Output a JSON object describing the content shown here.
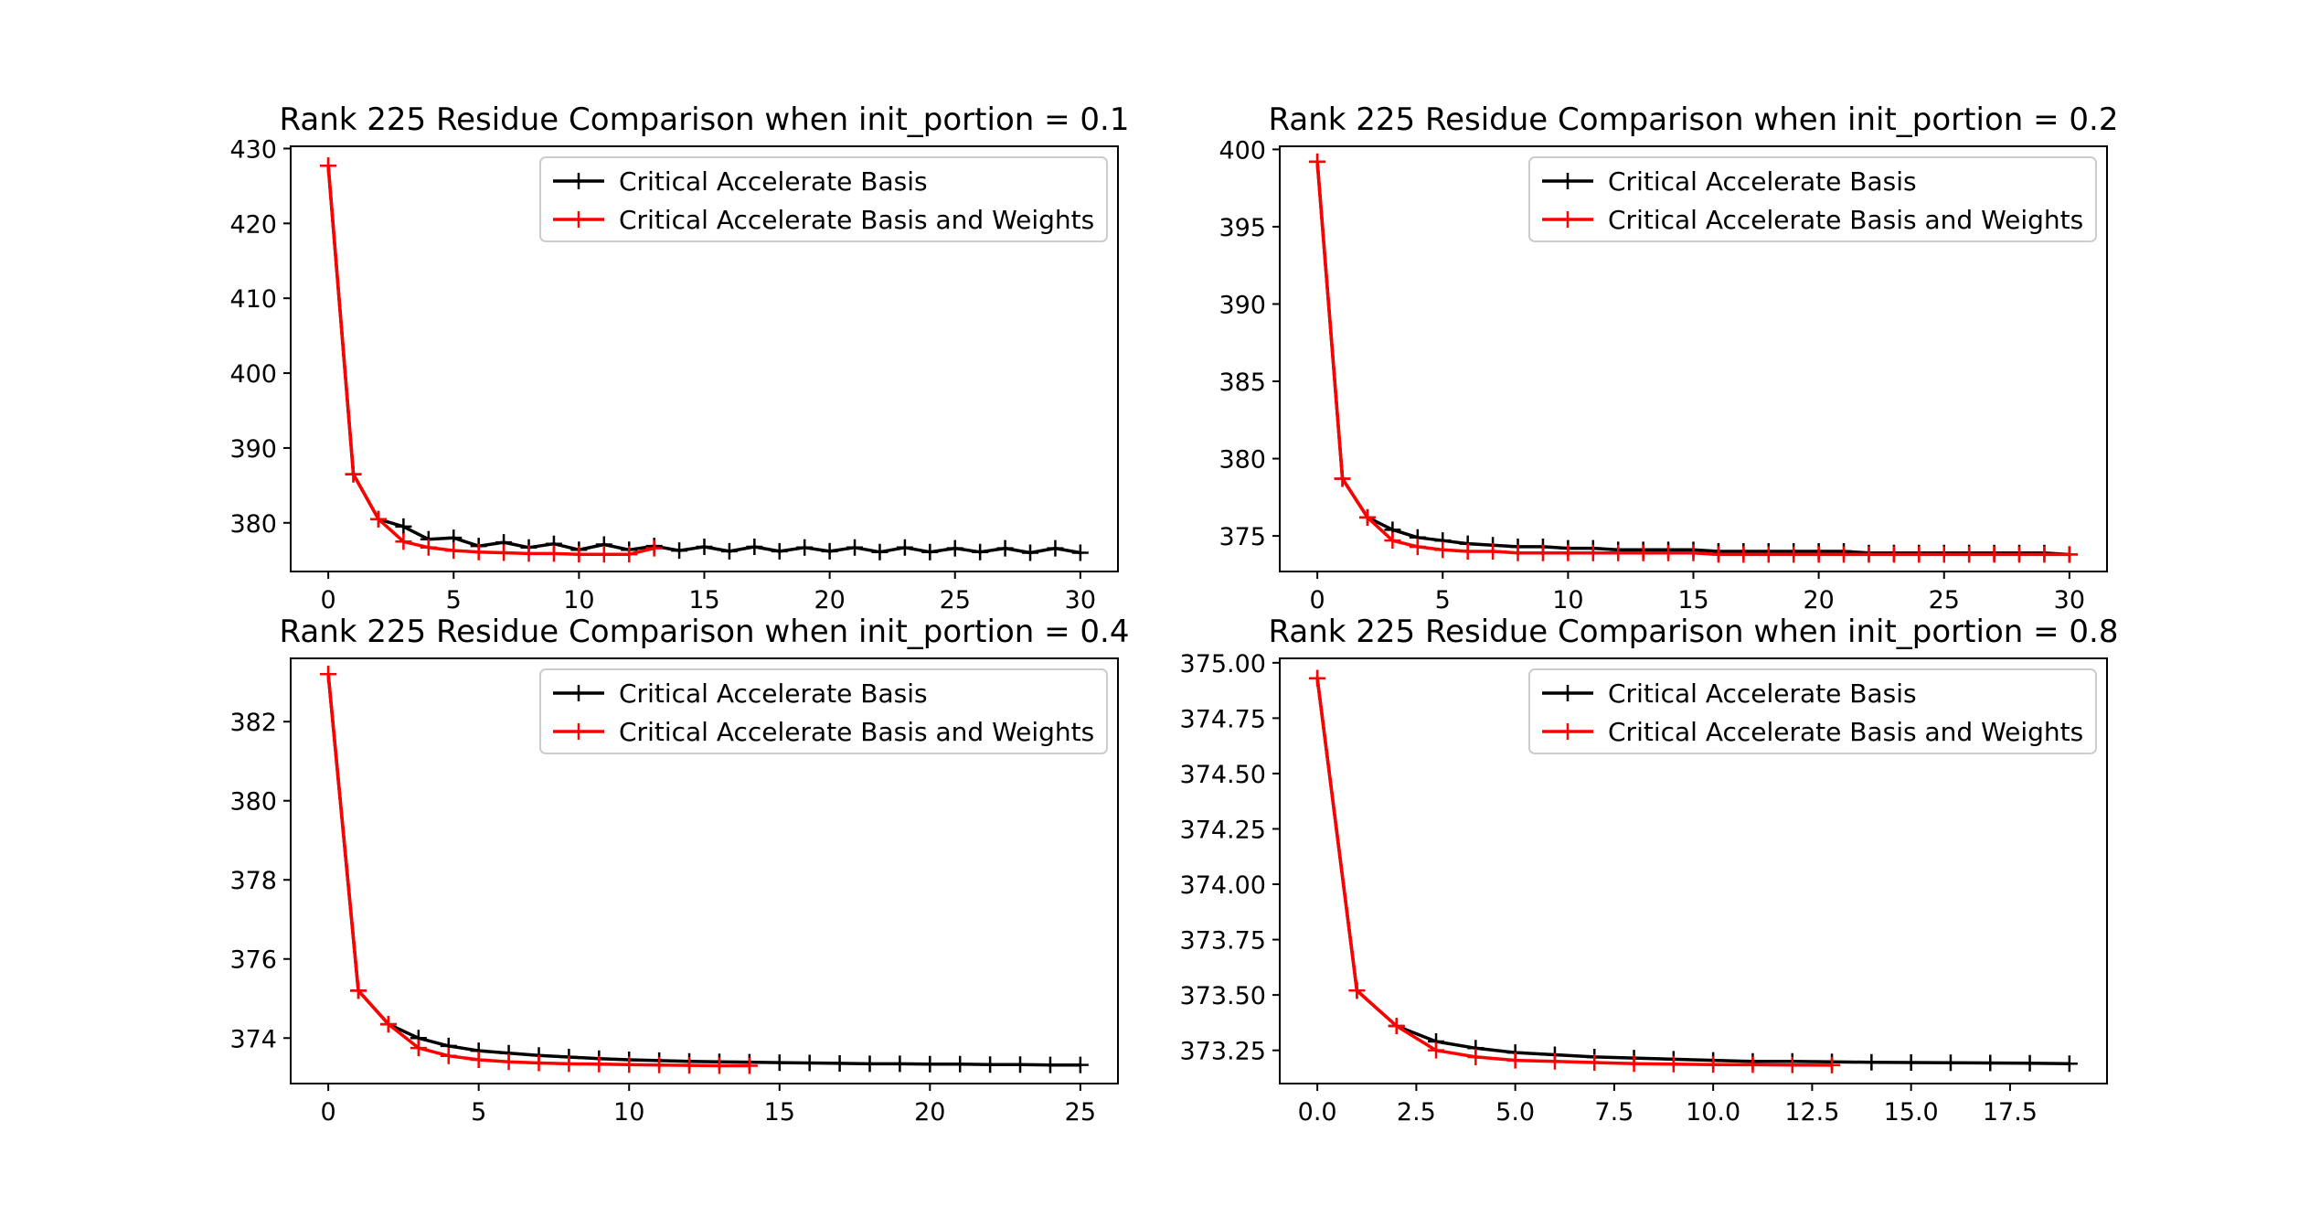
{
  "chart_data": [
    {
      "type": "line",
      "title": "Rank 225 Residue Comparison when init_portion = 0.1",
      "xlim": [
        -1.5,
        31.5
      ],
      "ylim": [
        373.5,
        430.3
      ],
      "xticks": [
        0,
        5,
        10,
        15,
        20,
        25,
        30
      ],
      "yticks": [
        380,
        390,
        400,
        410,
        420,
        430
      ],
      "tick_decimals": 0,
      "legend_position": "top-right",
      "series": [
        {
          "name": "Critical Accelerate Basis",
          "color": "#000000",
          "x": [
            0,
            1,
            2,
            3,
            4,
            5,
            6,
            7,
            8,
            9,
            10,
            11,
            12,
            13,
            14,
            15,
            16,
            17,
            18,
            19,
            20,
            21,
            22,
            23,
            24,
            25,
            26,
            27,
            28,
            29,
            30
          ],
          "values": [
            427.7,
            386.5,
            380.5,
            379.5,
            377.8,
            378.0,
            376.9,
            377.4,
            376.7,
            377.2,
            376.4,
            377.1,
            376.4,
            376.9,
            376.3,
            376.8,
            376.2,
            376.8,
            376.2,
            376.7,
            376.2,
            376.7,
            376.1,
            376.7,
            376.1,
            376.6,
            376.1,
            376.6,
            376.0,
            376.6,
            376.0
          ]
        },
        {
          "name": "Critical Accelerate Basis and Weights",
          "color": "#ff0000",
          "x": [
            0,
            1,
            2,
            3,
            4,
            5,
            6,
            7,
            8,
            9,
            10,
            11,
            12,
            13
          ],
          "values": [
            427.7,
            386.5,
            380.5,
            377.5,
            376.7,
            376.3,
            376.1,
            376.0,
            375.9,
            375.9,
            375.8,
            375.8,
            375.8,
            376.6
          ]
        }
      ]
    },
    {
      "type": "line",
      "title": "Rank 225 Residue Comparison when init_portion = 0.2",
      "xlim": [
        -1.5,
        31.5
      ],
      "ylim": [
        372.7,
        400.2
      ],
      "xticks": [
        0,
        5,
        10,
        15,
        20,
        25,
        30
      ],
      "yticks": [
        375,
        380,
        385,
        390,
        395,
        400
      ],
      "tick_decimals": 0,
      "legend_position": "top-right",
      "series": [
        {
          "name": "Critical Accelerate Basis",
          "color": "#000000",
          "x": [
            0,
            1,
            2,
            3,
            4,
            5,
            6,
            7,
            8,
            9,
            10,
            11,
            12,
            13,
            14,
            15,
            16,
            17,
            18,
            19,
            20,
            21,
            22,
            23,
            24,
            25,
            26,
            27,
            28,
            29,
            30
          ],
          "values": [
            399.2,
            378.7,
            376.2,
            375.4,
            374.9,
            374.7,
            374.5,
            374.4,
            374.3,
            374.3,
            374.2,
            374.2,
            374.1,
            374.1,
            374.1,
            374.1,
            374.0,
            374.0,
            374.0,
            374.0,
            374.0,
            374.0,
            373.9,
            373.9,
            373.9,
            373.9,
            373.9,
            373.9,
            373.9,
            373.9,
            373.8
          ]
        },
        {
          "name": "Critical Accelerate Basis and Weights",
          "color": "#ff0000",
          "x": [
            0,
            1,
            2,
            3,
            4,
            5,
            6,
            7,
            8,
            9,
            10,
            11,
            12,
            13,
            14,
            15,
            16,
            17,
            18,
            19,
            20,
            21,
            22,
            23,
            24,
            25,
            26,
            27,
            28,
            29,
            30
          ],
          "values": [
            399.2,
            378.7,
            376.2,
            374.7,
            374.3,
            374.1,
            374.0,
            374.0,
            373.9,
            373.9,
            373.9,
            373.9,
            373.9,
            373.9,
            373.9,
            373.9,
            373.8,
            373.8,
            373.8,
            373.8,
            373.8,
            373.8,
            373.8,
            373.8,
            373.8,
            373.8,
            373.8,
            373.8,
            373.8,
            373.8,
            373.8
          ]
        }
      ]
    },
    {
      "type": "line",
      "title": "Rank 225 Residue Comparison when init_portion = 0.4",
      "xlim": [
        -1.25,
        26.25
      ],
      "ylim": [
        372.85,
        383.6
      ],
      "xticks": [
        0,
        5,
        10,
        15,
        20,
        25
      ],
      "yticks": [
        374,
        376,
        378,
        380,
        382
      ],
      "tick_decimals": 0,
      "legend_position": "top-right",
      "series": [
        {
          "name": "Critical Accelerate Basis",
          "color": "#000000",
          "x": [
            0,
            1,
            2,
            3,
            4,
            5,
            6,
            7,
            8,
            9,
            10,
            11,
            12,
            13,
            14,
            15,
            16,
            17,
            18,
            19,
            20,
            21,
            22,
            23,
            24,
            25
          ],
          "values": [
            383.2,
            375.2,
            374.35,
            374.0,
            373.8,
            373.68,
            373.62,
            373.56,
            373.52,
            373.48,
            373.45,
            373.43,
            373.41,
            373.4,
            373.39,
            373.38,
            373.37,
            373.36,
            373.35,
            373.35,
            373.34,
            373.34,
            373.33,
            373.33,
            373.32,
            373.32
          ]
        },
        {
          "name": "Critical Accelerate Basis and Weights",
          "color": "#ff0000",
          "x": [
            0,
            1,
            2,
            3,
            4,
            5,
            6,
            7,
            8,
            9,
            10,
            11,
            12,
            13,
            14
          ],
          "values": [
            383.2,
            375.2,
            374.35,
            373.75,
            373.55,
            373.45,
            373.4,
            373.37,
            373.35,
            373.34,
            373.33,
            373.32,
            373.31,
            373.3,
            373.3
          ]
        }
      ]
    },
    {
      "type": "line",
      "title": "Rank 225 Residue Comparison when init_portion = 0.8",
      "xlim": [
        -0.95,
        19.95
      ],
      "ylim": [
        373.1,
        375.02
      ],
      "xticks": [
        0.0,
        2.5,
        5.0,
        7.5,
        10.0,
        12.5,
        15.0,
        17.5
      ],
      "yticks": [
        373.25,
        373.5,
        373.75,
        374.0,
        374.25,
        374.5,
        374.75,
        375.0
      ],
      "x_tick_decimals": 1,
      "y_tick_decimals": 2,
      "legend_position": "top-right",
      "series": [
        {
          "name": "Critical Accelerate Basis",
          "color": "#000000",
          "x": [
            0,
            1,
            2,
            3,
            4,
            5,
            6,
            7,
            8,
            9,
            10,
            11,
            12,
            13,
            14,
            15,
            16,
            17,
            18,
            19
          ],
          "values": [
            374.93,
            373.52,
            373.36,
            373.29,
            373.26,
            373.24,
            373.23,
            373.22,
            373.215,
            373.21,
            373.205,
            373.2,
            373.2,
            373.198,
            373.196,
            373.195,
            373.194,
            373.193,
            373.192,
            373.19
          ]
        },
        {
          "name": "Critical Accelerate Basis and Weights",
          "color": "#ff0000",
          "x": [
            0,
            1,
            2,
            3,
            4,
            5,
            6,
            7,
            8,
            9,
            10,
            11,
            12,
            13
          ],
          "values": [
            374.93,
            373.52,
            373.36,
            373.25,
            373.22,
            373.205,
            373.2,
            373.195,
            373.19,
            373.188,
            373.186,
            373.185,
            373.184,
            373.183
          ]
        }
      ]
    }
  ]
}
